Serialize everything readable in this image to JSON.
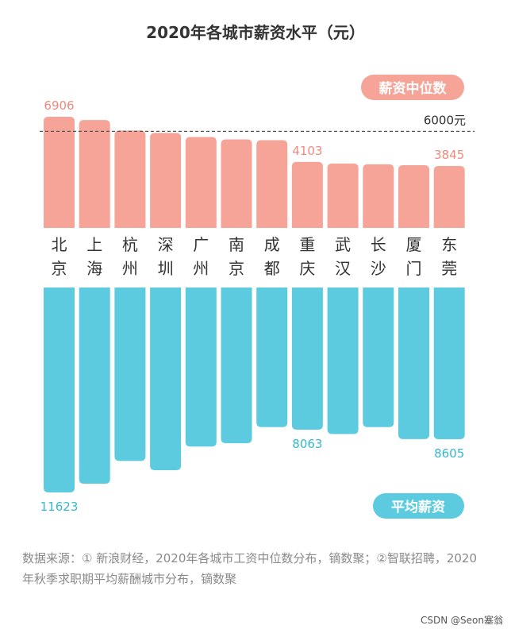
{
  "title": "2020年各城市薪资水平（元）",
  "colors": {
    "median": "#f5a497",
    "median_label": "#f0897d",
    "average": "#5ccbe0",
    "average_label": "#34b8cf"
  },
  "chart_data": {
    "type": "bar",
    "categories": [
      "北京",
      "上海",
      "杭州",
      "深圳",
      "广州",
      "南京",
      "成都",
      "重庆",
      "武汉",
      "长沙",
      "厦门",
      "东莞"
    ],
    "series": [
      {
        "name": "薪资中位数",
        "values": [
          6906,
          6700,
          6050,
          5900,
          5650,
          5500,
          5450,
          4103,
          4000,
          3950,
          3900,
          3845
        ],
        "labels": [
          "6906",
          "",
          "",
          "",
          "",
          "",
          "",
          "4103",
          "",
          "",
          "",
          "3845"
        ],
        "direction": "up"
      },
      {
        "name": "平均薪资",
        "values": [
          11623,
          11130,
          9840,
          10360,
          9020,
          8830,
          7920,
          8063,
          8310,
          7920,
          8600,
          8605
        ],
        "labels": [
          "11623",
          "",
          "",
          "",
          "",
          "",
          "",
          "8063",
          "",
          "",
          "",
          "8605"
        ],
        "direction": "down"
      }
    ],
    "reference_line": {
      "value": 6000,
      "label": "6000元"
    },
    "legend": [
      "薪资中位数",
      "平均薪资"
    ],
    "legend_placement": "right"
  },
  "footer": {
    "source": "数据来源：① 新浪财经，2020年各城市工资中位数分布，镝数聚；②智联招聘，2020年秋季求职期平均薪酬城市分布，镝数聚"
  },
  "credit": "CSDN @Seon塞翁"
}
